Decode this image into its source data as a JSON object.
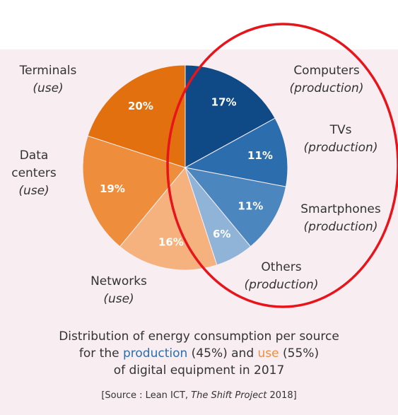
{
  "chart_data": {
    "type": "pie",
    "categories": [
      "Computers",
      "TVs",
      "Smartphones",
      "Others",
      "Networks",
      "Data centers",
      "Terminals"
    ],
    "category_notes": [
      "(production)",
      "(production)",
      "(production)",
      "(production)",
      "(use)",
      "(use)",
      "(use)"
    ],
    "values": [
      17,
      11,
      11,
      6,
      16,
      19,
      20
    ],
    "value_labels": [
      "17%",
      "11%",
      "11%",
      "6%",
      "16%",
      "19%",
      "20%"
    ],
    "colors": [
      "#0f4a87",
      "#2c6dad",
      "#4c86bf",
      "#8fb4d8",
      "#f5b27e",
      "#ee8d3c",
      "#e2700f"
    ]
  },
  "caption": {
    "line1": "Distribution of energy consumption per source",
    "line2": [
      "for the ",
      "production",
      " (45%) and ",
      "use",
      " (55%)"
    ],
    "line3": "of digital equipment in 2017",
    "source": [
      "[Source : Lean ICT, ",
      "The Shift Project",
      " 2018]"
    ]
  }
}
